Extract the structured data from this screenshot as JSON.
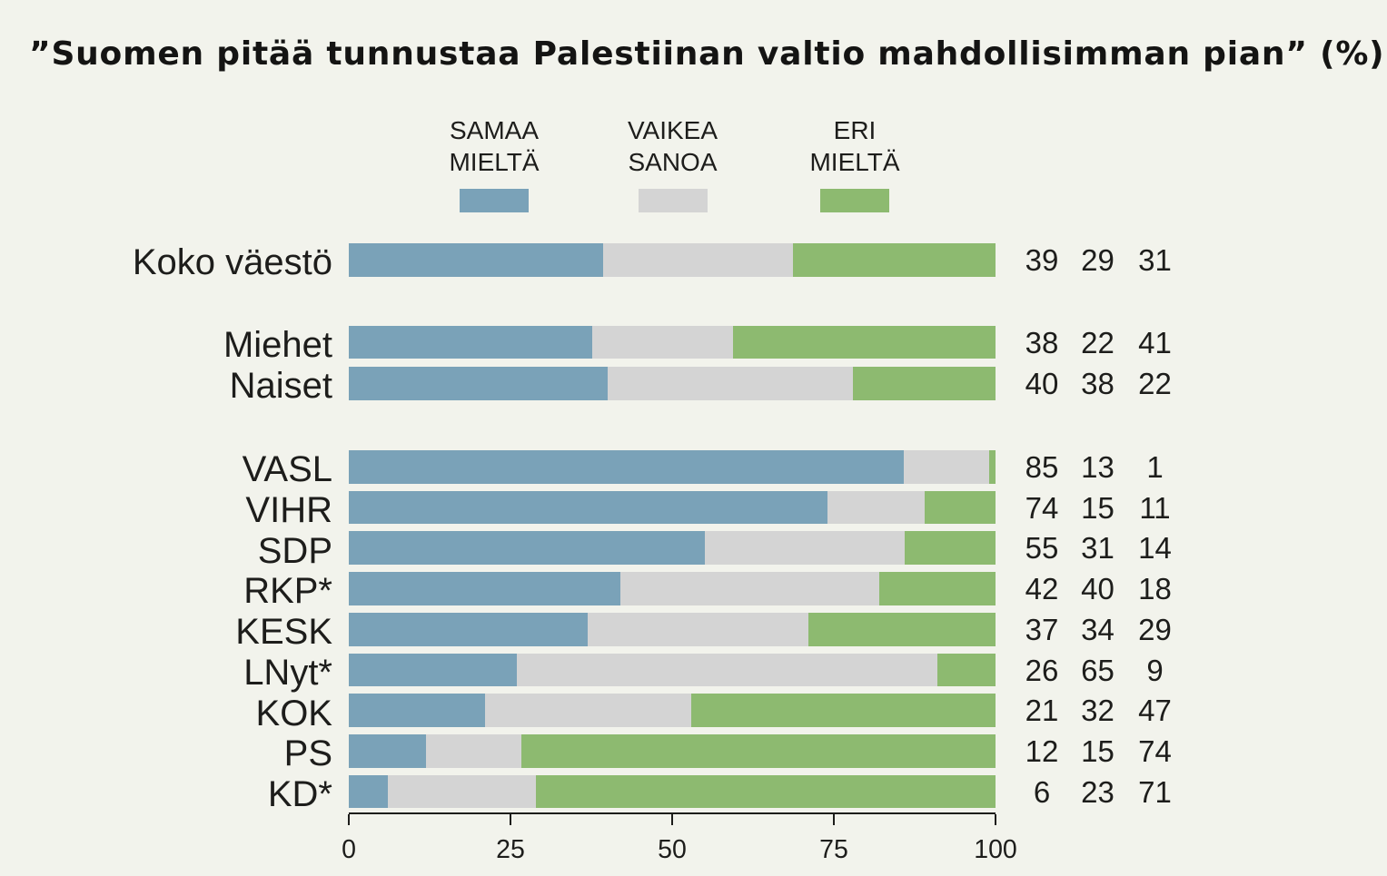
{
  "title": "”Suomen pitää tunnustaa Palestiinan valtio mahdollisimman pian” (%)",
  "colors": {
    "agree": "#7aa2b8",
    "neutral": "#d4d4d4",
    "disagree": "#8dba70",
    "background": "#f2f3ec",
    "text": "#1d1d1b"
  },
  "legend": {
    "items": [
      {
        "lines": [
          "SAMAA",
          "MIELTÄ"
        ],
        "series": "agree"
      },
      {
        "lines": [
          "VAIKEA",
          "SANOA"
        ],
        "series": "neutral"
      },
      {
        "lines": [
          "ERI",
          "MIELTÄ"
        ],
        "series": "disagree"
      }
    ]
  },
  "chart_data": {
    "type": "bar",
    "orientation": "horizontal",
    "stacked": true,
    "normalized_to_100": true,
    "title": "”Suomen pitää tunnustaa Palestiinan valtio mahdollisimman pian” (%)",
    "xlabel": "",
    "ylabel": "",
    "xlim": [
      0,
      100
    ],
    "x_ticks": [
      0,
      25,
      50,
      75,
      100
    ],
    "grid": false,
    "legend_position": "top",
    "series_names": [
      "SAMAA MIELTÄ",
      "VAIKEA SANOA",
      "ERI MIELTÄ"
    ],
    "value_columns_right": true,
    "groups": [
      {
        "rows": [
          {
            "category": "Koko väestö",
            "values": [
              39,
              29,
              31
            ]
          }
        ]
      },
      {
        "rows": [
          {
            "category": "Miehet",
            "values": [
              38,
              22,
              41
            ]
          },
          {
            "category": "Naiset",
            "values": [
              40,
              38,
              22
            ]
          }
        ]
      },
      {
        "rows": [
          {
            "category": "VASL",
            "values": [
              85,
              13,
              1
            ]
          },
          {
            "category": "VIHR",
            "values": [
              74,
              15,
              11
            ]
          },
          {
            "category": "SDP",
            "values": [
              55,
              31,
              14
            ]
          },
          {
            "category": "RKP*",
            "values": [
              42,
              40,
              18
            ]
          },
          {
            "category": "KESK",
            "values": [
              37,
              34,
              29
            ]
          },
          {
            "category": "LNyt*",
            "values": [
              26,
              65,
              9
            ]
          },
          {
            "category": "KOK",
            "values": [
              21,
              32,
              47
            ]
          },
          {
            "category": "PS",
            "values": [
              12,
              15,
              74
            ]
          },
          {
            "category": "KD*",
            "values": [
              6,
              23,
              71
            ]
          }
        ]
      }
    ]
  }
}
